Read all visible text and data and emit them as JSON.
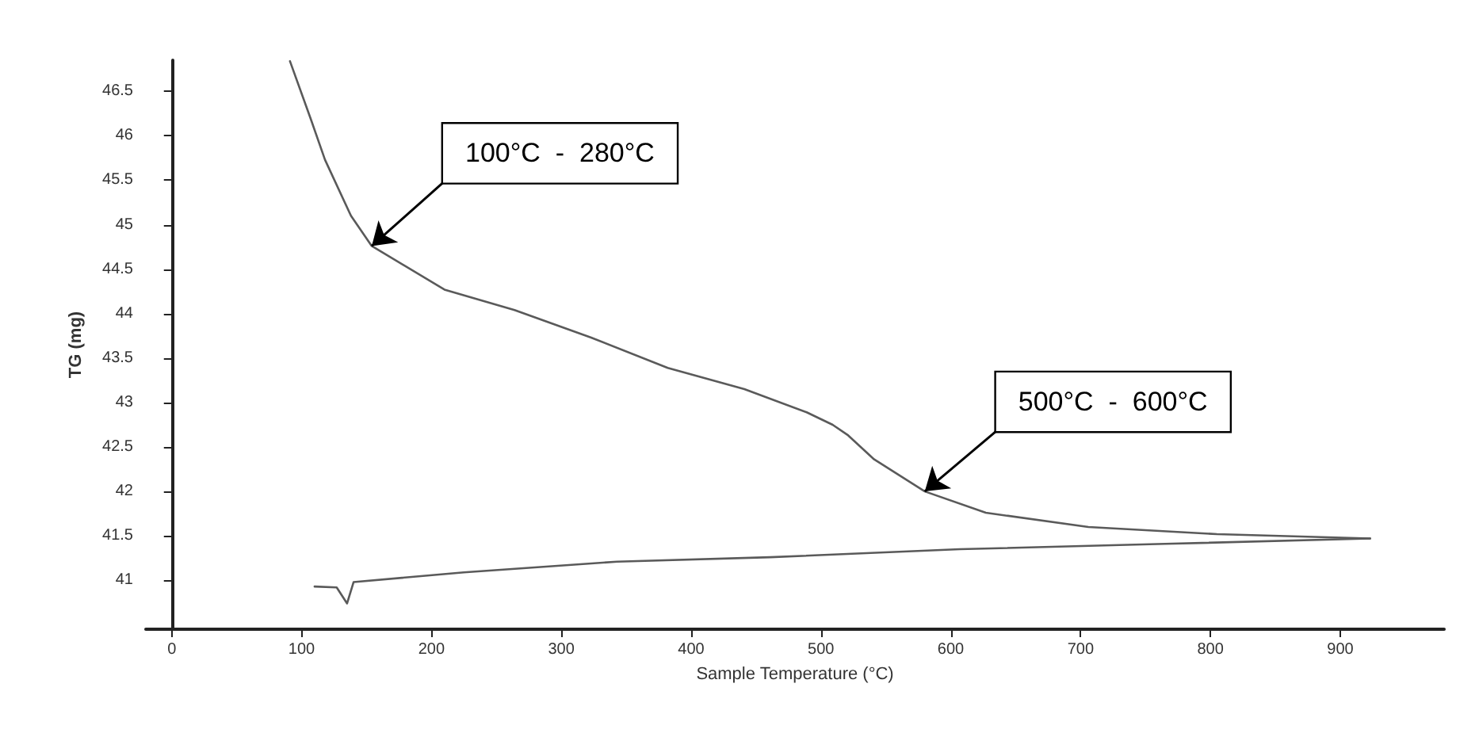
{
  "chart_data": {
    "type": "line",
    "xlabel": "Sample Temperature (°C)",
    "ylabel": "TG (mg)",
    "xlim": [
      -20,
      980
    ],
    "xticks": [
      0,
      100,
      200,
      300,
      400,
      500,
      600,
      700,
      800,
      900
    ],
    "ylim": [
      40.45,
      46.85
    ],
    "yticks": [
      41,
      41.5,
      42,
      42.5,
      43,
      43.5,
      44,
      44.5,
      45,
      45.5,
      46,
      46.5
    ],
    "grid": false,
    "marker": "none",
    "line_style": "solid",
    "series": [
      {
        "color": "#5a5a5a",
        "x": [
          91,
          107,
          118,
          138,
          154,
          210,
          264,
          323,
          382,
          441,
          489,
          509,
          521,
          541,
          580,
          627,
          706,
          805,
          923
        ],
        "values": [
          46.84,
          46.19,
          45.73,
          45.1,
          44.76,
          44.27,
          44.04,
          43.73,
          43.39,
          43.15,
          42.89,
          42.75,
          42.63,
          42.36,
          42.0,
          41.76,
          41.6,
          41.52,
          41.47
        ]
      },
      {
        "color": "#5a5a5a",
        "x": [
          110,
          127,
          135,
          140,
          225,
          343,
          461,
          607,
          765,
          923
        ],
        "values": [
          40.93,
          40.92,
          40.74,
          40.98,
          41.09,
          41.21,
          41.26,
          41.35,
          41.41,
          41.47
        ]
      }
    ],
    "annotations": [
      {
        "text": "100°C  -  280°C",
        "x": 154,
        "y": 44.76
      },
      {
        "text": "500°C  -  600°C",
        "x": 580,
        "y": 42.0
      }
    ]
  }
}
